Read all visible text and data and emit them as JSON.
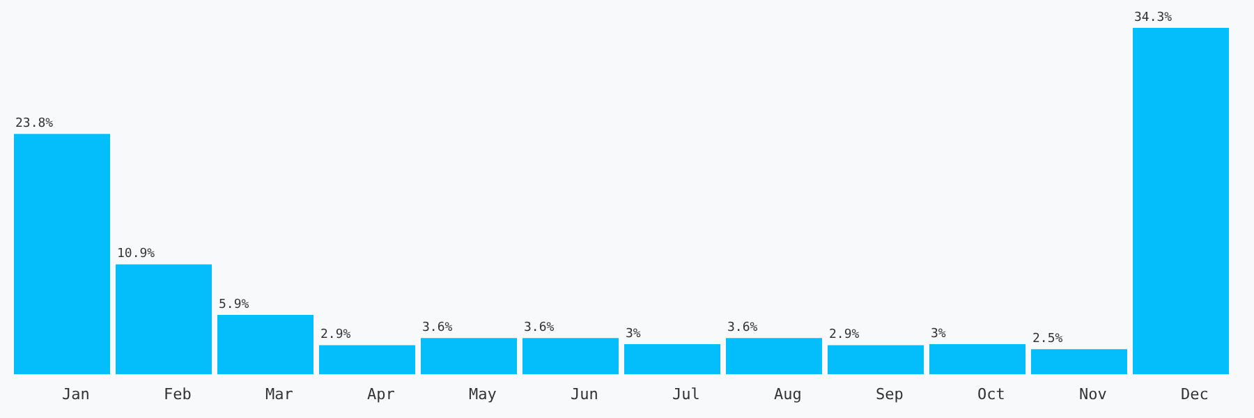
{
  "chart_data": {
    "type": "bar",
    "categories": [
      "Jan",
      "Feb",
      "Mar",
      "Apr",
      "May",
      "Jun",
      "Jul",
      "Aug",
      "Sep",
      "Oct",
      "Nov",
      "Dec"
    ],
    "values": [
      23.8,
      10.9,
      5.9,
      2.9,
      3.6,
      3.6,
      3,
      3.6,
      2.9,
      3,
      2.5,
      34.3
    ],
    "value_labels": [
      "23.8%",
      "10.9%",
      "5.9%",
      "2.9%",
      "3.6%",
      "3.6%",
      "3%",
      "3.6%",
      "2.9%",
      "3%",
      "2.5%",
      "34.3%"
    ],
    "color": "#04bdfb",
    "grid": false,
    "legend": false
  }
}
